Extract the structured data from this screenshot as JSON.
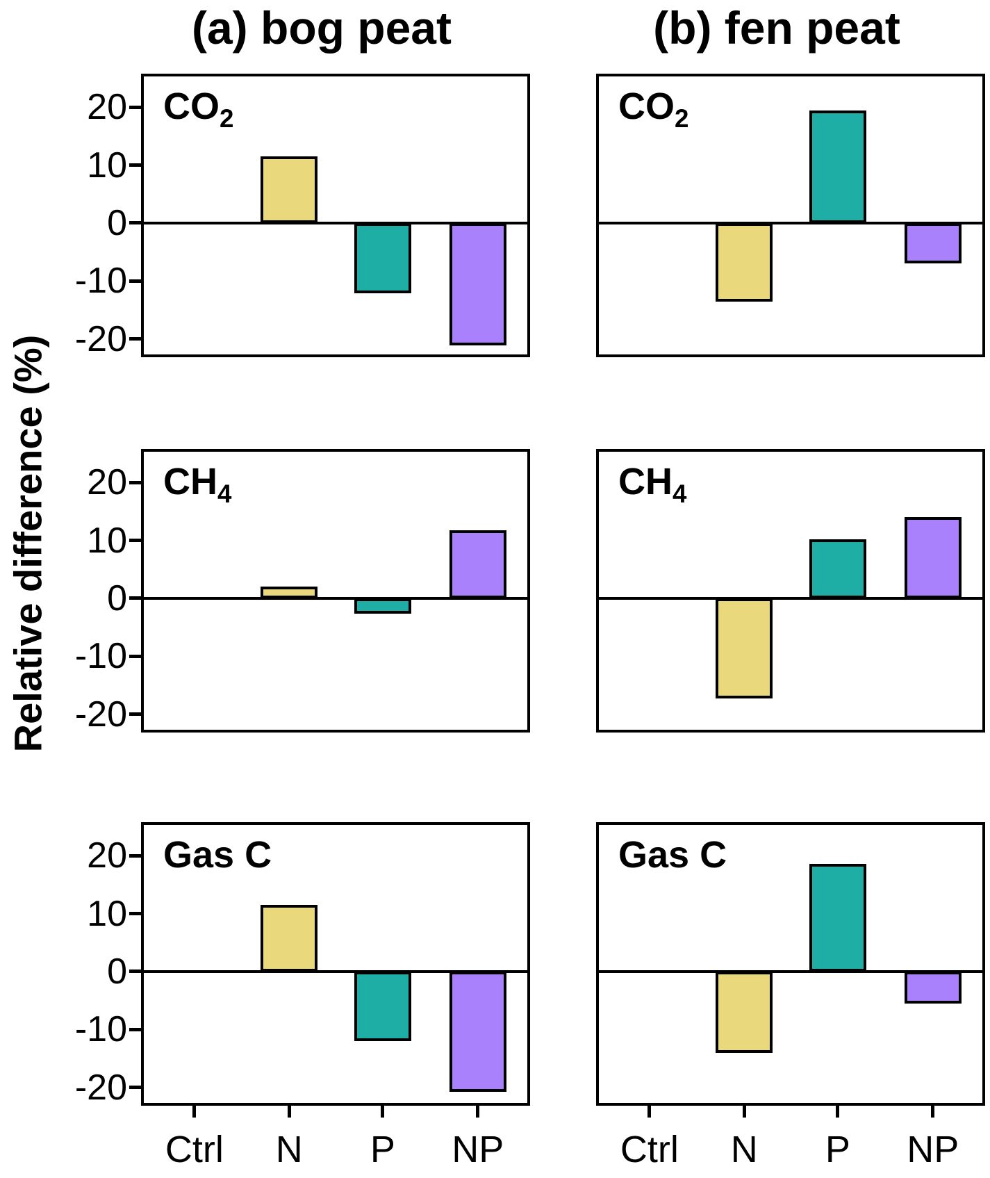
{
  "figure": {
    "column_titles": [
      "(a) bog peat",
      "(b) fen peat"
    ],
    "y_axis_label": "Relative difference (%)",
    "x_categories": [
      "Ctrl",
      "N",
      "P",
      "NP"
    ],
    "y_tick_labels": [
      "20",
      "10",
      "0",
      "-10",
      "-20"
    ],
    "y_tick_values": [
      20,
      10,
      0,
      -10,
      -20
    ],
    "colors": {
      "N": "#e9d97c",
      "P": "#1faea6",
      "NP": "#a981fc",
      "bar_outline": "#000000",
      "axis": "#000000",
      "background": "#ffffff"
    }
  },
  "chart_data": {
    "type": "bar",
    "categories": [
      "Ctrl",
      "N",
      "P",
      "NP"
    ],
    "ylabel": "Relative difference (%)",
    "ylim": [
      -22.7,
      25.3
    ],
    "y_ticks": [
      20,
      10,
      0,
      -10,
      -20
    ],
    "grid": "off",
    "legend": "none",
    "columns": [
      "(a) bog peat",
      "(b) fen peat"
    ],
    "rows": [
      "CO2",
      "CH4",
      "Gas C"
    ],
    "panels": [
      {
        "id": "co2-bog",
        "row": "CO2",
        "column": "(a) bog peat",
        "label_main": "CO",
        "label_sub": "2",
        "values": [
          0,
          11.5,
          -12.2,
          -21.1
        ]
      },
      {
        "id": "co2-fen",
        "row": "CO2",
        "column": "(b) fen peat",
        "label_main": "CO",
        "label_sub": "2",
        "values": [
          0,
          -13.6,
          19.4,
          -7.0
        ]
      },
      {
        "id": "ch4-bog",
        "row": "CH4",
        "column": "(a) bog peat",
        "label_main": "CH",
        "label_sub": "4",
        "values": [
          0,
          2.0,
          -2.7,
          11.8
        ]
      },
      {
        "id": "ch4-fen",
        "row": "CH4",
        "column": "(b) fen peat",
        "label_main": "CH",
        "label_sub": "4",
        "values": [
          0,
          -17.3,
          10.2,
          14.0
        ]
      },
      {
        "id": "gasc-bog",
        "row": "Gas C",
        "column": "(a) bog peat",
        "label_main": "Gas C",
        "label_sub": "",
        "values": [
          0,
          11.5,
          -12.0,
          -20.8
        ]
      },
      {
        "id": "gasc-fen",
        "row": "Gas C",
        "column": "(b) fen peat",
        "label_main": "Gas C",
        "label_sub": "",
        "values": [
          0,
          -14.1,
          18.6,
          -5.5
        ]
      }
    ]
  }
}
